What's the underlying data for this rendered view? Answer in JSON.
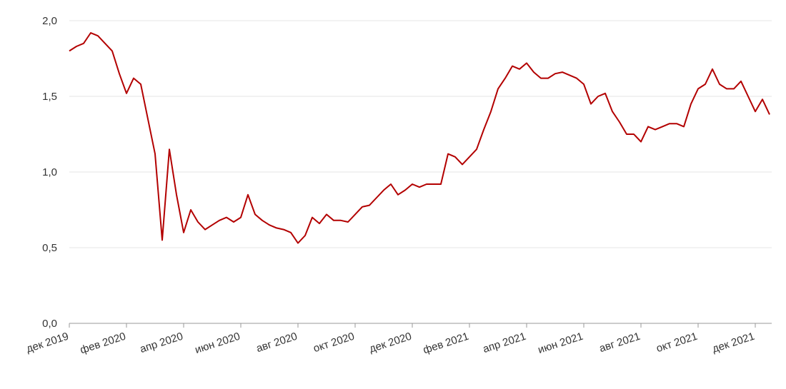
{
  "chart_data": {
    "type": "line",
    "categories": [
      "дек 2019",
      null,
      null,
      null,
      null,
      null,
      null,
      null,
      "фев 2020",
      null,
      null,
      null,
      null,
      null,
      null,
      null,
      "апр 2020",
      null,
      null,
      null,
      null,
      null,
      null,
      null,
      "июн 2020",
      null,
      null,
      null,
      null,
      null,
      null,
      null,
      "авг 2020",
      null,
      null,
      null,
      null,
      null,
      null,
      null,
      "окт 2020",
      null,
      null,
      null,
      null,
      null,
      null,
      null,
      "дек 2020",
      null,
      null,
      null,
      null,
      null,
      null,
      null,
      "фев 2021",
      null,
      null,
      null,
      null,
      null,
      null,
      null,
      "апр 2021",
      null,
      null,
      null,
      null,
      null,
      null,
      null,
      "июн 2021",
      null,
      null,
      null,
      null,
      null,
      null,
      null,
      "авг 2021",
      null,
      null,
      null,
      null,
      null,
      null,
      null,
      "окт 2021",
      null,
      null,
      null,
      null,
      null,
      null,
      null,
      "дек 2021",
      null,
      null
    ],
    "series": [
      {
        "color": "#b30000",
        "values": [
          1.8,
          1.83,
          1.85,
          1.92,
          1.9,
          1.85,
          1.8,
          1.65,
          1.52,
          1.62,
          1.58,
          1.35,
          1.12,
          0.55,
          1.15,
          0.85,
          0.6,
          0.75,
          0.67,
          0.62,
          0.65,
          0.68,
          0.7,
          0.67,
          0.7,
          0.85,
          0.72,
          0.68,
          0.65,
          0.63,
          0.62,
          0.6,
          0.53,
          0.58,
          0.7,
          0.66,
          0.72,
          0.68,
          0.68,
          0.67,
          0.72,
          0.77,
          0.78,
          0.83,
          0.88,
          0.92,
          0.85,
          0.88,
          0.92,
          0.9,
          0.92,
          0.92,
          0.92,
          1.12,
          1.1,
          1.05,
          1.1,
          1.15,
          1.28,
          1.4,
          1.55,
          1.62,
          1.7,
          1.68,
          1.72,
          1.66,
          1.62,
          1.62,
          1.65,
          1.66,
          1.64,
          1.62,
          1.58,
          1.45,
          1.5,
          1.52,
          1.4,
          1.33,
          1.25,
          1.25,
          1.2,
          1.3,
          1.28,
          1.3,
          1.32,
          1.32,
          1.3,
          1.45,
          1.55,
          1.58,
          1.68,
          1.58,
          1.55,
          1.55,
          1.6,
          1.5,
          1.4,
          1.48,
          1.38
        ]
      }
    ],
    "ylim": [
      0,
      2
    ],
    "yticks": [
      {
        "value": 0,
        "label": "0,0"
      },
      {
        "value": 0.5,
        "label": "0,5"
      },
      {
        "value": 1,
        "label": "1,0"
      },
      {
        "value": 1.5,
        "label": "1,5"
      },
      {
        "value": 2,
        "label": "2,0"
      }
    ],
    "grid": true
  }
}
